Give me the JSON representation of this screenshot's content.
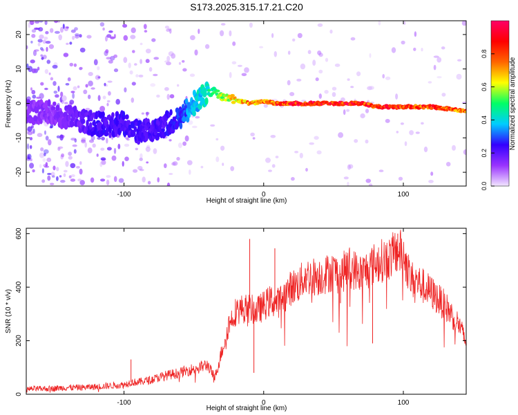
{
  "figure": {
    "title": "S173.2025.315.17.21.C20"
  },
  "chart_data": [
    {
      "type": "heatmap",
      "xlabel": "Height of straight line (km)",
      "ylabel": "Frequency (Hz)",
      "xlim": [
        -170,
        145
      ],
      "ylim": [
        -24,
        24
      ],
      "xticks": [
        -100,
        0,
        100
      ],
      "yticks": [
        -20,
        -10,
        0,
        10,
        20
      ],
      "grid": false,
      "colorbar": {
        "label": "Normalized spectral amplitude",
        "range": [
          0,
          1
        ],
        "ticks": [
          0.0,
          0.2,
          0.4,
          0.6,
          0.8
        ],
        "colormap": [
          "#f2e6ff",
          "#9933ff",
          "#3300ff",
          "#00ccff",
          "#00ff66",
          "#ffff00",
          "#ff6600",
          "#ff0000",
          "#ff0066"
        ]
      },
      "ridge": {
        "x": [
          -170,
          -150,
          -130,
          -120,
          -110,
          -100,
          -90,
          -80,
          -70,
          -60,
          -50,
          -40,
          -35,
          -30,
          -20,
          -10,
          0,
          10,
          20,
          40,
          60,
          70,
          80,
          100,
          120,
          130,
          140,
          145
        ],
        "freq": [
          -2,
          -3,
          -5,
          -6,
          -6,
          -6,
          -8,
          -8,
          -6,
          -4,
          0,
          3,
          3.5,
          2,
          1,
          0,
          0.5,
          0,
          0,
          0,
          0,
          0,
          -1,
          -1,
          -1,
          -1.5,
          -2,
          -2
        ],
        "amplitude": [
          0.15,
          0.15,
          0.2,
          0.25,
          0.25,
          0.25,
          0.25,
          0.25,
          0.25,
          0.3,
          0.4,
          0.5,
          0.55,
          0.6,
          0.75,
          0.8,
          0.8,
          0.9,
          0.95,
          0.97,
          0.97,
          0.95,
          0.93,
          0.92,
          0.9,
          0.88,
          0.85,
          0.85
        ]
      }
    },
    {
      "type": "line",
      "xlabel": "Height of straight line (km)",
      "ylabel": "SNR (10 * v/v)",
      "xlim": [
        -170,
        145
      ],
      "ylim": [
        0,
        620
      ],
      "xticks": [
        -100,
        0,
        100
      ],
      "yticks": [
        0,
        200,
        400,
        600
      ],
      "grid": false,
      "color": "#ee2222",
      "series": [
        {
          "x": [
            -170,
            -160,
            -150,
            -140,
            -130,
            -120,
            -110,
            -100,
            -95,
            -90,
            -80,
            -70,
            -60,
            -50,
            -40,
            -35,
            -30,
            -25,
            -20,
            -15,
            -10,
            -5,
            0,
            5,
            10,
            15,
            20,
            25,
            30,
            40,
            50,
            55,
            60,
            70,
            80,
            85,
            90,
            95,
            100,
            105,
            110,
            120,
            130,
            140,
            145
          ],
          "y": [
            20,
            20,
            22,
            25,
            25,
            28,
            32,
            35,
            45,
            45,
            55,
            70,
            80,
            95,
            110,
            60,
            160,
            260,
            310,
            320,
            320,
            310,
            330,
            350,
            340,
            370,
            400,
            410,
            440,
            440,
            460,
            440,
            480,
            450,
            490,
            500,
            510,
            530,
            530,
            430,
            420,
            380,
            330,
            260,
            190
          ]
        }
      ],
      "spikes": [
        {
          "x": -95,
          "y": 130
        },
        {
          "x": -10,
          "y": 580
        },
        {
          "x": -7,
          "y": 80
        },
        {
          "x": 8,
          "y": 545
        },
        {
          "x": 55,
          "y": 340
        },
        {
          "x": 78,
          "y": 190
        },
        {
          "x": 96,
          "y": 600
        }
      ]
    }
  ]
}
